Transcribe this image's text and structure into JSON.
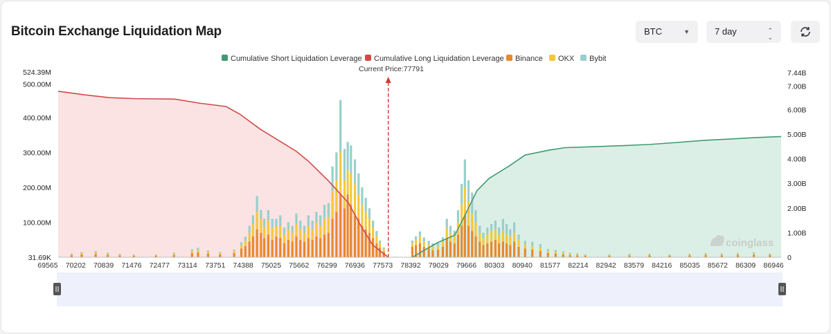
{
  "header": {
    "title": "Bitcoin Exchange Liquidation Map",
    "symbol_select": "BTC",
    "period_select": "7 day",
    "refresh_icon": "refresh-icon"
  },
  "watermark": "coinglass",
  "colors": {
    "short_line": "#3f9a72",
    "short_fill": "#dcefe6",
    "long_line": "#d14a48",
    "long_fill": "#fbe3e3",
    "binance": "#e8882e",
    "okx": "#f3c83c",
    "bybit": "#98cfcc",
    "price_line": "#d23a32"
  },
  "chart_data": {
    "type": "bar",
    "legend": [
      "Cumulative Short Liquidation Leverage",
      "Cumulative Long Liquidation Leverage",
      "Binance",
      "OKX",
      "Bybit"
    ],
    "current_price_label": "Current Price:77791",
    "current_price": 77791,
    "x_ticks": [
      "69565",
      "70202",
      "70839",
      "71476",
      "72477",
      "73114",
      "73751",
      "74388",
      "75025",
      "75662",
      "76299",
      "76936",
      "77573",
      "78392",
      "79029",
      "79666",
      "80303",
      "80940",
      "81577",
      "82214",
      "82942",
      "83579",
      "84216",
      "85035",
      "85672",
      "86309",
      "86946"
    ],
    "x_range": [
      69565,
      87580
    ],
    "y_left_ticks": [
      "524.39M",
      "500.00M",
      "400.00M",
      "300.00M",
      "200.00M",
      "100.00M",
      "31.69K"
    ],
    "y_left_range": [
      0,
      524.39
    ],
    "y_right_ticks": [
      "7.44B",
      "7.00B",
      "6.00B",
      "5.00B",
      "4.00B",
      "3.00B",
      "2.00B",
      "1.00B",
      "0"
    ],
    "y_right_range": [
      0,
      7.44
    ],
    "cumulative_long_B": [
      [
        69565,
        6.74
      ],
      [
        70200,
        6.6
      ],
      [
        70840,
        6.48
      ],
      [
        71480,
        6.44
      ],
      [
        72470,
        6.42
      ],
      [
        73110,
        6.25
      ],
      [
        73750,
        6.12
      ],
      [
        74100,
        5.8
      ],
      [
        74600,
        5.2
      ],
      [
        75100,
        4.7
      ],
      [
        75500,
        4.3
      ],
      [
        75800,
        3.9
      ],
      [
        76300,
        3.1
      ],
      [
        76800,
        2.2
      ],
      [
        77100,
        1.3
      ],
      [
        77400,
        0.5
      ],
      [
        77791,
        0
      ]
    ],
    "cumulative_short_B": [
      [
        78392,
        0
      ],
      [
        78700,
        0.3
      ],
      [
        79030,
        0.6
      ],
      [
        79450,
        0.9
      ],
      [
        79700,
        1.7
      ],
      [
        80000,
        2.7
      ],
      [
        80300,
        3.2
      ],
      [
        80800,
        3.7
      ],
      [
        81200,
        4.15
      ],
      [
        81800,
        4.35
      ],
      [
        82200,
        4.45
      ],
      [
        82942,
        4.49
      ],
      [
        83600,
        4.53
      ],
      [
        84300,
        4.58
      ],
      [
        84900,
        4.65
      ],
      [
        85700,
        4.75
      ],
      [
        86300,
        4.8
      ],
      [
        86946,
        4.86
      ],
      [
        87580,
        4.9
      ]
    ],
    "bars_M": [
      [
        69900,
        6,
        3,
        2
      ],
      [
        70150,
        8,
        4,
        3
      ],
      [
        70500,
        9,
        5,
        4
      ],
      [
        70800,
        7,
        3,
        3
      ],
      [
        71100,
        5,
        3,
        2
      ],
      [
        71450,
        4,
        2,
        2
      ],
      [
        72000,
        4,
        2,
        2
      ],
      [
        72450,
        6,
        4,
        3
      ],
      [
        72900,
        12,
        6,
        5
      ],
      [
        73050,
        14,
        7,
        6
      ],
      [
        73300,
        10,
        5,
        4
      ],
      [
        73600,
        8,
        4,
        3
      ],
      [
        73950,
        12,
        6,
        4
      ],
      [
        74130,
        25,
        10,
        8
      ],
      [
        74230,
        32,
        15,
        12
      ],
      [
        74330,
        45,
        25,
        20
      ],
      [
        74420,
        60,
        35,
        25
      ],
      [
        74520,
        80,
        50,
        45
      ],
      [
        74620,
        70,
        40,
        25
      ],
      [
        74700,
        55,
        30,
        25
      ],
      [
        74800,
        65,
        40,
        30
      ],
      [
        74900,
        50,
        35,
        25
      ],
      [
        75000,
        60,
        30,
        20
      ],
      [
        75100,
        55,
        35,
        30
      ],
      [
        75200,
        40,
        25,
        20
      ],
      [
        75300,
        50,
        30,
        20
      ],
      [
        75400,
        45,
        25,
        20
      ],
      [
        75500,
        60,
        35,
        30
      ],
      [
        75600,
        50,
        30,
        25
      ],
      [
        75700,
        45,
        25,
        20
      ],
      [
        75800,
        55,
        35,
        30
      ],
      [
        75900,
        50,
        30,
        25
      ],
      [
        76000,
        60,
        40,
        30
      ],
      [
        76100,
        55,
        35,
        30
      ],
      [
        76200,
        65,
        45,
        40
      ],
      [
        76300,
        70,
        45,
        40
      ],
      [
        76400,
        110,
        80,
        70
      ],
      [
        76500,
        130,
        90,
        80
      ],
      [
        76600,
        180,
        120,
        150
      ],
      [
        76700,
        140,
        80,
        90
      ],
      [
        76780,
        180,
        70,
        80
      ],
      [
        76860,
        150,
        90,
        80
      ],
      [
        76960,
        120,
        90,
        70
      ],
      [
        77050,
        110,
        70,
        60
      ],
      [
        77140,
        90,
        60,
        50
      ],
      [
        77230,
        80,
        50,
        40
      ],
      [
        77320,
        70,
        40,
        30
      ],
      [
        77410,
        55,
        30,
        20
      ],
      [
        77500,
        40,
        20,
        15
      ],
      [
        77580,
        28,
        12,
        8
      ],
      [
        77680,
        15,
        8,
        5
      ],
      [
        78390,
        30,
        10,
        8
      ],
      [
        78480,
        35,
        15,
        10
      ],
      [
        78580,
        40,
        20,
        14
      ],
      [
        78680,
        30,
        15,
        12
      ],
      [
        78800,
        25,
        12,
        10
      ],
      [
        78900,
        20,
        10,
        10
      ],
      [
        79030,
        22,
        10,
        8
      ],
      [
        79150,
        30,
        15,
        12
      ],
      [
        79250,
        55,
        30,
        25
      ],
      [
        79340,
        45,
        25,
        20
      ],
      [
        79440,
        40,
        20,
        16
      ],
      [
        79530,
        65,
        35,
        35
      ],
      [
        79620,
        90,
        60,
        60
      ],
      [
        79700,
        120,
        80,
        80
      ],
      [
        79790,
        90,
        70,
        60
      ],
      [
        79880,
        75,
        50,
        60
      ],
      [
        79970,
        60,
        40,
        35
      ],
      [
        80070,
        45,
        25,
        20
      ],
      [
        80160,
        35,
        20,
        15
      ],
      [
        80260,
        40,
        25,
        20
      ],
      [
        80360,
        45,
        30,
        20
      ],
      [
        80460,
        50,
        30,
        25
      ],
      [
        80550,
        40,
        25,
        20
      ],
      [
        80650,
        45,
        30,
        35
      ],
      [
        80740,
        40,
        25,
        30
      ],
      [
        80830,
        35,
        25,
        20
      ],
      [
        80930,
        45,
        25,
        30
      ],
      [
        81040,
        30,
        20,
        15
      ],
      [
        81200,
        25,
        12,
        10
      ],
      [
        81380,
        22,
        10,
        12
      ],
      [
        81580,
        18,
        10,
        10
      ],
      [
        81770,
        12,
        6,
        6
      ],
      [
        81960,
        10,
        6,
        5
      ],
      [
        82150,
        8,
        5,
        4
      ],
      [
        82320,
        6,
        4,
        3
      ],
      [
        82500,
        5,
        3,
        3
      ],
      [
        82700,
        4,
        2,
        2
      ],
      [
        83300,
        4,
        2,
        2
      ],
      [
        83800,
        5,
        3,
        2
      ],
      [
        84300,
        5,
        3,
        2
      ],
      [
        84800,
        4,
        2,
        2
      ],
      [
        85300,
        5,
        3,
        2
      ],
      [
        85700,
        6,
        3,
        3
      ],
      [
        86100,
        5,
        3,
        3
      ],
      [
        86500,
        6,
        3,
        3
      ],
      [
        86900,
        7,
        4,
        3
      ],
      [
        87300,
        6,
        3,
        2
      ]
    ]
  }
}
